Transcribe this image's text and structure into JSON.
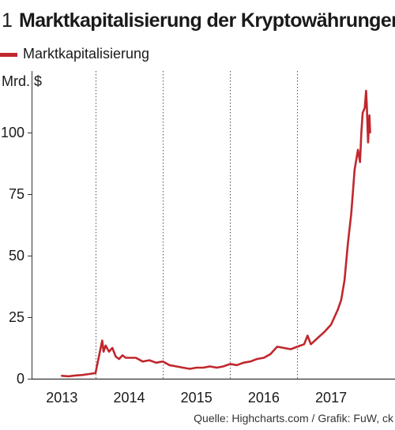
{
  "header": {
    "figure_number": "1",
    "title": "Marktkapitalisierung der Kryptowährungen"
  },
  "source": "Quelle: Highcharts.com / Grafik: FuW, ck",
  "colors": {
    "series": "#c0272d",
    "axis": "#333333",
    "grid": "#555555"
  },
  "chart_data": {
    "type": "line",
    "title": "Marktkapitalisierung der Kryptowährungen",
    "ylabel": "Mrd. $",
    "xlabel": "",
    "ylim": [
      0,
      125
    ],
    "xlim": [
      2012.55,
      2017.95
    ],
    "yticks": [
      0,
      25,
      50,
      75,
      100
    ],
    "xticks": [
      {
        "label": "2013",
        "value": 2013.0
      },
      {
        "label": "2014",
        "value": 2014.0
      },
      {
        "label": "2015",
        "value": 2015.0
      },
      {
        "label": "2016",
        "value": 2016.0
      },
      {
        "label": "2017",
        "value": 2017.0
      }
    ],
    "grid": {
      "vertical": "dotted",
      "horizontal": false
    },
    "legend_position": "top-left",
    "series": [
      {
        "name": "Marktkapitalisierung",
        "x": [
          2013.0,
          2013.1,
          2013.2,
          2013.3,
          2013.4,
          2013.5,
          2013.55,
          2013.6,
          2013.62,
          2013.65,
          2013.7,
          2013.75,
          2013.8,
          2013.85,
          2013.9,
          2013.95,
          2014.0,
          2014.1,
          2014.2,
          2014.3,
          2014.4,
          2014.5,
          2014.6,
          2014.7,
          2014.8,
          2014.9,
          2015.0,
          2015.1,
          2015.2,
          2015.3,
          2015.4,
          2015.5,
          2015.6,
          2015.7,
          2015.8,
          2015.9,
          2016.0,
          2016.1,
          2016.2,
          2016.3,
          2016.4,
          2016.5,
          2016.6,
          2016.65,
          2016.7,
          2016.8,
          2016.9,
          2017.0,
          2017.05,
          2017.1,
          2017.15,
          2017.2,
          2017.25,
          2017.3,
          2017.35,
          2017.4,
          2017.43,
          2017.45,
          2017.47,
          2017.5,
          2017.52,
          2017.53,
          2017.55,
          2017.57,
          2017.58
        ],
        "values": [
          1.2,
          1.0,
          1.3,
          1.5,
          1.9,
          2.3,
          9.0,
          15.5,
          11.0,
          13.5,
          11.0,
          12.5,
          9.0,
          8.0,
          9.5,
          8.5,
          8.5,
          8.5,
          7.0,
          7.5,
          6.5,
          7.0,
          5.5,
          5.0,
          4.5,
          4.0,
          4.5,
          4.5,
          5.0,
          4.5,
          5.0,
          6.0,
          5.5,
          6.5,
          7.0,
          8.0,
          8.5,
          10.0,
          13.0,
          12.5,
          12.0,
          13.0,
          14.0,
          17.5,
          14.0,
          16.5,
          19.0,
          22.0,
          25.0,
          28.0,
          32.0,
          40.0,
          55.0,
          67.0,
          85.0,
          93.0,
          88.0,
          100.0,
          108.0,
          110.0,
          117.0,
          112.0,
          96.0,
          107.0,
          100.0
        ]
      }
    ]
  }
}
